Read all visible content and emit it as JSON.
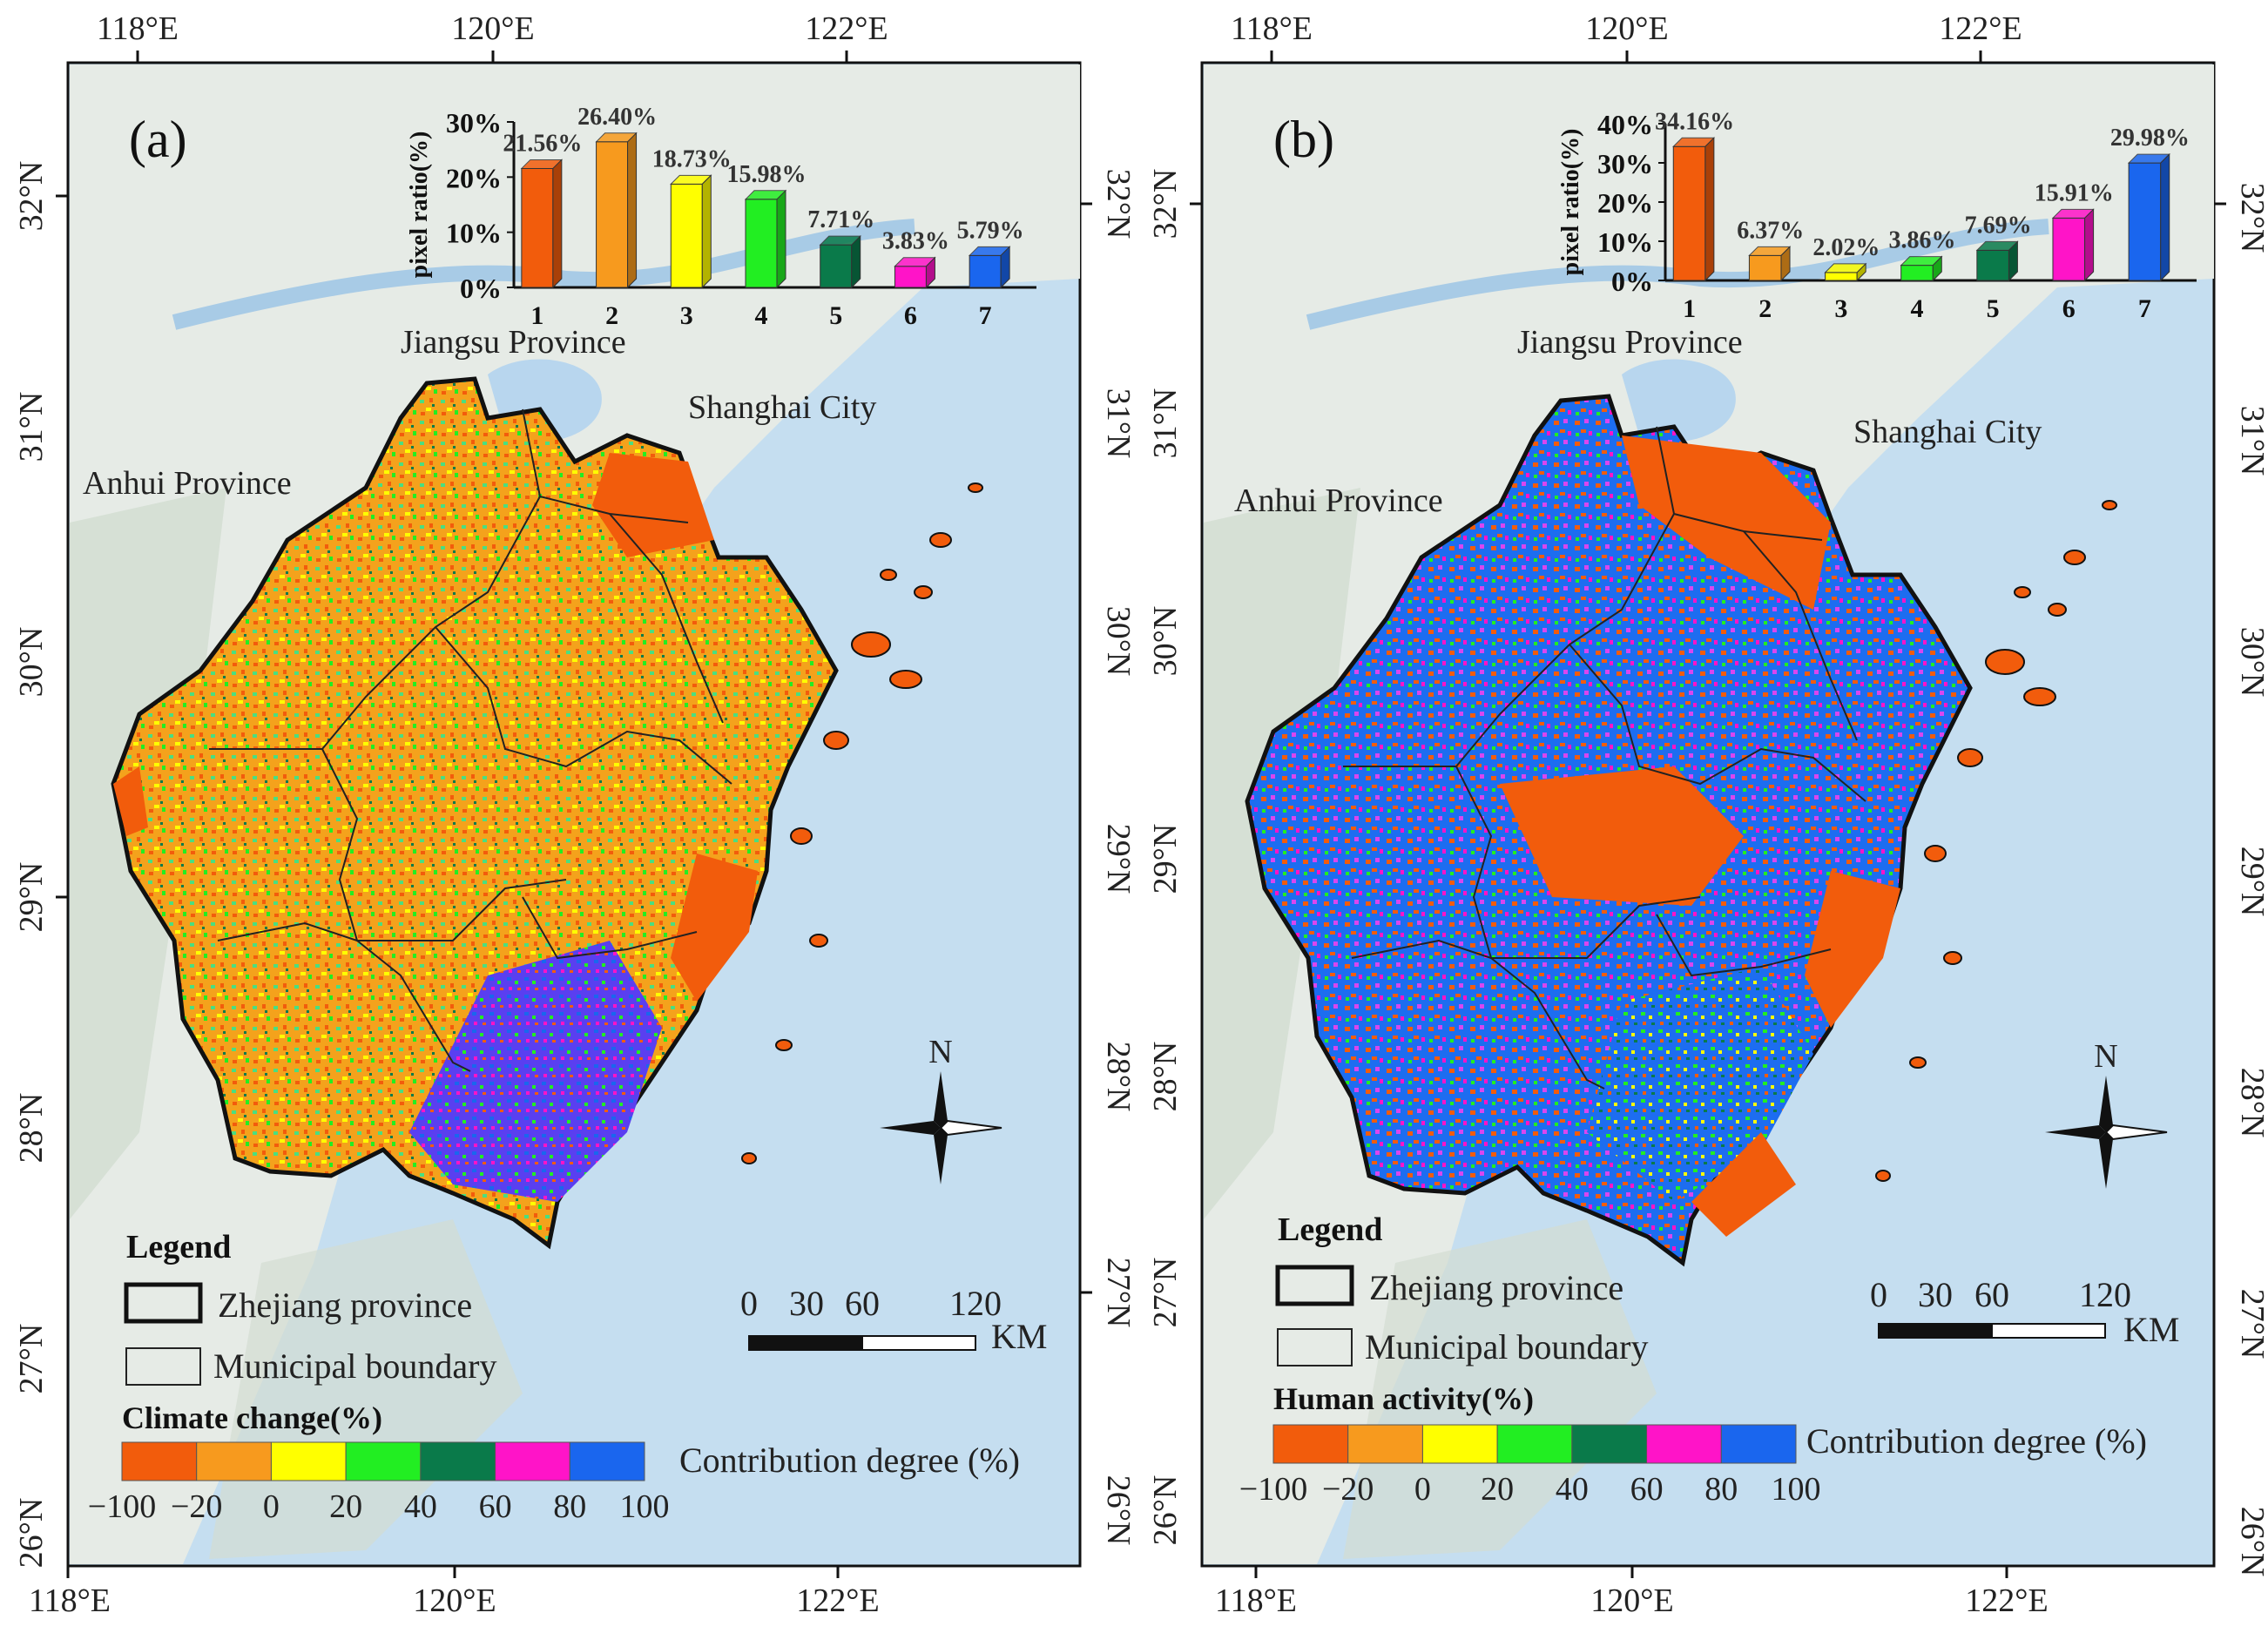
{
  "panels": [
    {
      "id": "a",
      "tag": "(a)",
      "lon_labels": [
        "118°E",
        "120°E",
        "122°E"
      ],
      "lat_labels": [
        "32°N",
        "31°N",
        "30°N",
        "29°N",
        "28°N",
        "27°N",
        "26°N"
      ],
      "places": {
        "jiangsu": "Jiangsu Province",
        "shanghai": "Shanghai City",
        "anhui": "Anhui Province"
      },
      "north_label": "N",
      "scale": {
        "ticks": [
          "0",
          "30",
          "60",
          "120"
        ],
        "unit": "KM"
      },
      "legend": {
        "title": "Legend",
        "province": "Zhejiang province",
        "municipal": "Municipal boundary"
      },
      "colorbar": {
        "title": "Climate change(%)",
        "caption": "Contribution degree (%)",
        "ticks": [
          "−100",
          "−20",
          "0",
          "20",
          "40",
          "60",
          "80",
          "100"
        ]
      },
      "dominant_colors": [
        "#f97316",
        "#fbbf24",
        "#4ade80"
      ]
    },
    {
      "id": "b",
      "tag": "(b)",
      "lon_labels": [
        "118°E",
        "120°E",
        "122°E"
      ],
      "lat_labels": [
        "32°N",
        "31°N",
        "30°N",
        "29°N",
        "28°N",
        "27°N",
        "26°N"
      ],
      "places": {
        "jiangsu": "Jiangsu Province",
        "shanghai": "Shanghai City",
        "anhui": "Anhui Province"
      },
      "north_label": "N",
      "scale": {
        "ticks": [
          "0",
          "30",
          "60",
          "120"
        ],
        "unit": "KM"
      },
      "legend": {
        "title": "Legend",
        "province": "Zhejiang province",
        "municipal": "Municipal boundary"
      },
      "colorbar": {
        "title": "Human activity(%)",
        "caption": "Contribution degree (%)",
        "ticks": [
          "−100",
          "−20",
          "0",
          "20",
          "40",
          "60",
          "80",
          "100"
        ]
      },
      "dominant_colors": [
        "#1d6df0",
        "#f25c0c",
        "#d946ef"
      ]
    }
  ],
  "class_colors": [
    "#f25c0c",
    "#f79a1e",
    "#ffff00",
    "#22ee22",
    "#0a7a4a",
    "#ff14c8",
    "#1a66ee"
  ],
  "chart_data": [
    {
      "type": "bar",
      "panel": "a",
      "categories": [
        "1",
        "2",
        "3",
        "4",
        "5",
        "6",
        "7"
      ],
      "values": [
        21.56,
        26.4,
        18.73,
        15.98,
        7.71,
        3.83,
        5.79
      ],
      "value_labels": [
        "21.56%",
        "26.40%",
        "18.73%",
        "15.98%",
        "7.71%",
        "3.83%",
        "5.79%"
      ],
      "ylabel": "pixel ratio(%)",
      "ylim": [
        0,
        30
      ],
      "yticks": [
        "0%",
        "10%",
        "20%",
        "30%"
      ]
    },
    {
      "type": "bar",
      "panel": "b",
      "categories": [
        "1",
        "2",
        "3",
        "4",
        "5",
        "6",
        "7"
      ],
      "values": [
        34.16,
        6.37,
        2.02,
        3.86,
        7.69,
        15.91,
        29.98
      ],
      "value_labels": [
        "34.16%",
        "6.37%",
        "2.02%",
        "3.86%",
        "7.69%",
        "15.91%",
        "29.98%"
      ],
      "ylabel": "pixel ratio(%)",
      "ylim": [
        0,
        40
      ],
      "yticks": [
        "0%",
        "10%",
        "20%",
        "30%",
        "40%"
      ]
    }
  ]
}
